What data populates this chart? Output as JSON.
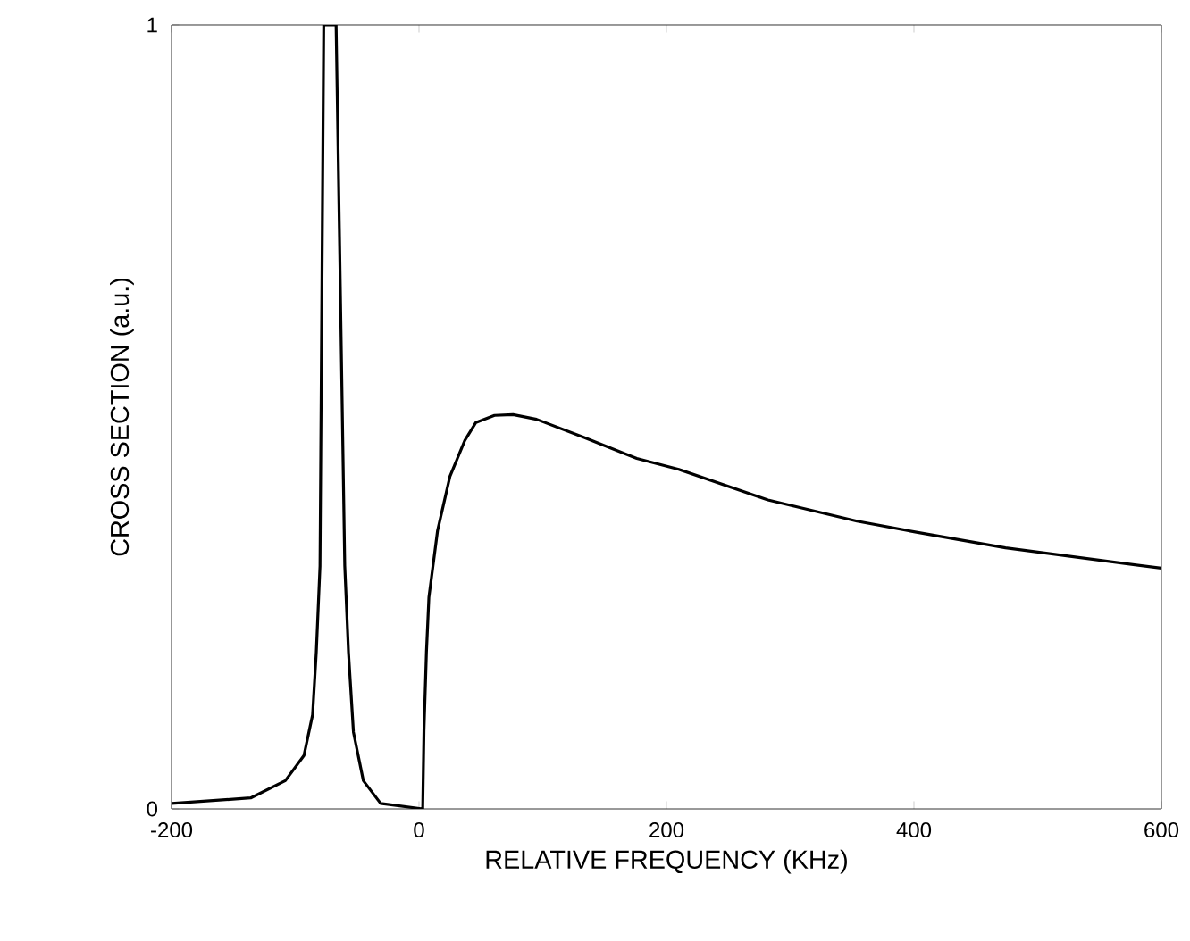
{
  "chart_data": {
    "type": "line",
    "xlabel": "RELATIVE FREQUENCY (KHz)",
    "ylabel": "CROSS SECTION (a.u.)",
    "xlim": [
      -200,
      600
    ],
    "ylim": [
      0,
      1
    ],
    "xticks": [
      -200,
      0,
      200,
      400,
      600
    ],
    "yticks": [
      0,
      1
    ],
    "grid": false,
    "marker": "none",
    "line_style": "solid",
    "series": [
      {
        "color": "#000000",
        "x": [
          -200,
          -136,
          -108,
          -93,
          -86,
          -83,
          -80,
          -77,
          -72,
          -67,
          -60,
          -57,
          -53,
          -45,
          -31,
          3,
          3,
          4,
          6,
          8,
          15,
          25,
          37,
          46,
          61,
          76,
          95,
          133,
          176,
          210,
          282,
          354,
          402,
          474,
          600
        ],
        "values": [
          0.007,
          0.014,
          0.036,
          0.068,
          0.12,
          0.2,
          0.31,
          1,
          1,
          1,
          0.31,
          0.2,
          0.098,
          0.036,
          0.007,
          0,
          0,
          0.1,
          0.2,
          0.27,
          0.355,
          0.424,
          0.47,
          0.493,
          0.502,
          0.503,
          0.497,
          0.474,
          0.447,
          0.433,
          0.394,
          0.367,
          0.353,
          0.333,
          0.307
        ]
      }
    ]
  }
}
